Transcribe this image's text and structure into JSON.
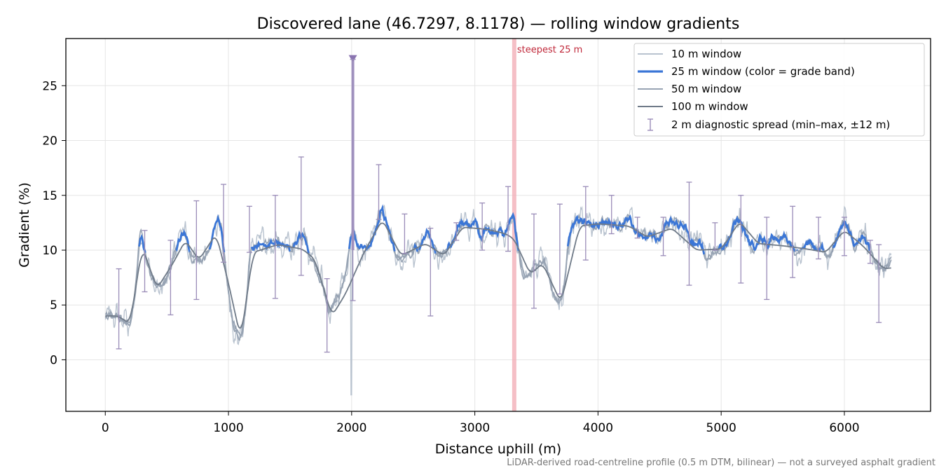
{
  "chart_data": {
    "type": "line",
    "title": "Discovered lane (46.7297, 8.1178) — rolling window gradients",
    "xlabel": "Distance uphill (m)",
    "ylabel": "Gradient (%)",
    "footnote": "LiDAR-derived road-centreline profile (0.5 m DTM, bilinear) — not a surveyed asphalt gradient",
    "xlim": [
      -320,
      6700
    ],
    "ylim": [
      -4.7,
      29.3
    ],
    "xticks": [
      0,
      1000,
      2000,
      3000,
      4000,
      5000,
      6000
    ],
    "yticks": [
      0,
      5,
      10,
      15,
      20,
      25
    ],
    "grid": true,
    "legend_position": "top-right",
    "legend": [
      "10 m window",
      "25 m window (color = grade band)",
      "50 m window",
      "100 m window",
      "2 m diagnostic spread (min–max, ±12 m)"
    ],
    "colors": {
      "w10": "#b9c3cf",
      "w25": "#3b76d6",
      "w50": "#97a3b3",
      "w100": "#6f7a88",
      "spread": "#9a8cb8",
      "spike": "#a596c4",
      "steepest_band": "#f2a9b3",
      "steepest_label": "#c0283a"
    },
    "annotations": {
      "steepest_label": "steepest 25 m",
      "steepest_x": 3320,
      "spike_x": 2010,
      "spike_top": 27.6
    },
    "profile_knots": [
      [
        0,
        3.8
      ],
      [
        60,
        4.2
      ],
      [
        120,
        3.9
      ],
      [
        200,
        3.1
      ],
      [
        250,
        6.5
      ],
      [
        285,
        12.0
      ],
      [
        330,
        9.3
      ],
      [
        400,
        6.9
      ],
      [
        450,
        6.4
      ],
      [
        500,
        7.5
      ],
      [
        560,
        9.6
      ],
      [
        620,
        11.4
      ],
      [
        650,
        11.8
      ],
      [
        690,
        9.4
      ],
      [
        740,
        9.1
      ],
      [
        800,
        9.2
      ],
      [
        860,
        10.4
      ],
      [
        900,
        12.7
      ],
      [
        940,
        12.4
      ],
      [
        980,
        8.0
      ],
      [
        1040,
        3.0
      ],
      [
        1100,
        2.0
      ],
      [
        1130,
        3.2
      ],
      [
        1180,
        10.5
      ],
      [
        1210,
        10.0
      ],
      [
        1260,
        10.8
      ],
      [
        1310,
        10.4
      ],
      [
        1350,
        10.8
      ],
      [
        1400,
        10.5
      ],
      [
        1460,
        10.7
      ],
      [
        1510,
        9.8
      ],
      [
        1570,
        11.1
      ],
      [
        1620,
        11.8
      ],
      [
        1650,
        9.6
      ],
      [
        1700,
        9.0
      ],
      [
        1760,
        7.0
      ],
      [
        1820,
        4.2
      ],
      [
        1870,
        5.5
      ],
      [
        1920,
        6.5
      ],
      [
        1970,
        9.0
      ],
      [
        2010,
        12.5
      ],
      [
        2040,
        10.2
      ],
      [
        2100,
        10.0
      ],
      [
        2150,
        10.4
      ],
      [
        2200,
        12.0
      ],
      [
        2240,
        13.8
      ],
      [
        2280,
        12.6
      ],
      [
        2320,
        11.2
      ],
      [
        2350,
        9.6
      ],
      [
        2400,
        9.4
      ],
      [
        2450,
        9.6
      ],
      [
        2500,
        10.0
      ],
      [
        2550,
        10.1
      ],
      [
        2600,
        11.7
      ],
      [
        2640,
        11.2
      ],
      [
        2680,
        9.6
      ],
      [
        2720,
        9.3
      ],
      [
        2780,
        10.1
      ],
      [
        2830,
        10.8
      ],
      [
        2880,
        12.7
      ],
      [
        2920,
        12.4
      ],
      [
        2960,
        12.1
      ],
      [
        3000,
        12.8
      ],
      [
        3050,
        11.1
      ],
      [
        3100,
        12.1
      ],
      [
        3150,
        11.5
      ],
      [
        3200,
        11.9
      ],
      [
        3250,
        11.5
      ],
      [
        3310,
        13.6
      ],
      [
        3340,
        11.0
      ],
      [
        3380,
        8.5
      ],
      [
        3420,
        7.3
      ],
      [
        3470,
        8.2
      ],
      [
        3530,
        9.0
      ],
      [
        3580,
        8.6
      ],
      [
        3640,
        6.0
      ],
      [
        3690,
        5.2
      ],
      [
        3730,
        7.0
      ],
      [
        3770,
        11.8
      ],
      [
        3820,
        12.6
      ],
      [
        3900,
        12.6
      ],
      [
        3980,
        12.2
      ],
      [
        4050,
        12.6
      ],
      [
        4120,
        12.3
      ],
      [
        4200,
        12.1
      ],
      [
        4250,
        13.4
      ],
      [
        4290,
        12.0
      ],
      [
        4350,
        11.1
      ],
      [
        4420,
        11.5
      ],
      [
        4500,
        11.0
      ],
      [
        4550,
        12.4
      ],
      [
        4600,
        12.7
      ],
      [
        4660,
        12.1
      ],
      [
        4700,
        12.3
      ],
      [
        4760,
        10.6
      ],
      [
        4820,
        10.9
      ],
      [
        4880,
        9.2
      ],
      [
        4940,
        9.8
      ],
      [
        5000,
        10.2
      ],
      [
        5060,
        10.8
      ],
      [
        5120,
        13.1
      ],
      [
        5170,
        12.4
      ],
      [
        5220,
        10.8
      ],
      [
        5270,
        10.2
      ],
      [
        5320,
        11.1
      ],
      [
        5370,
        10.4
      ],
      [
        5420,
        11.3
      ],
      [
        5480,
        10.7
      ],
      [
        5520,
        11.4
      ],
      [
        5580,
        10.2
      ],
      [
        5640,
        9.8
      ],
      [
        5700,
        11.0
      ],
      [
        5760,
        10.0
      ],
      [
        5810,
        10.4
      ],
      [
        5860,
        9.2
      ],
      [
        5900,
        10.0
      ],
      [
        5950,
        11.4
      ],
      [
        6000,
        12.6
      ],
      [
        6040,
        11.8
      ],
      [
        6090,
        10.3
      ],
      [
        6140,
        11.4
      ],
      [
        6190,
        10.6
      ],
      [
        6230,
        9.3
      ],
      [
        6280,
        8.6
      ],
      [
        6320,
        8.3
      ],
      [
        6380,
        8.8
      ]
    ],
    "smooth_100m_knots": [
      [
        0,
        4.0
      ],
      [
        100,
        4.0
      ],
      [
        200,
        3.3
      ],
      [
        300,
        10.3
      ],
      [
        420,
        6.5
      ],
      [
        550,
        8.8
      ],
      [
        650,
        10.9
      ],
      [
        760,
        9.1
      ],
      [
        900,
        11.5
      ],
      [
        1000,
        7.0
      ],
      [
        1100,
        1.9
      ],
      [
        1200,
        9.8
      ],
      [
        1400,
        10.5
      ],
      [
        1600,
        10.1
      ],
      [
        1700,
        9.2
      ],
      [
        1840,
        4.0
      ],
      [
        1950,
        6.0
      ],
      [
        2100,
        9.8
      ],
      [
        2250,
        12.8
      ],
      [
        2400,
        9.5
      ],
      [
        2600,
        10.6
      ],
      [
        2750,
        9.5
      ],
      [
        2900,
        12.1
      ],
      [
        3100,
        11.9
      ],
      [
        3250,
        11.5
      ],
      [
        3320,
        11.0
      ],
      [
        3450,
        7.8
      ],
      [
        3550,
        8.8
      ],
      [
        3700,
        5.2
      ],
      [
        3850,
        12.2
      ],
      [
        4000,
        12.4
      ],
      [
        4250,
        12.2
      ],
      [
        4400,
        11.2
      ],
      [
        4600,
        12.0
      ],
      [
        4800,
        10.0
      ],
      [
        5000,
        10.1
      ],
      [
        5150,
        12.6
      ],
      [
        5300,
        10.6
      ],
      [
        5500,
        10.4
      ],
      [
        5700,
        10.1
      ],
      [
        5850,
        9.8
      ],
      [
        6000,
        11.8
      ],
      [
        6150,
        10.4
      ],
      [
        6320,
        8.3
      ],
      [
        6380,
        8.4
      ]
    ],
    "spread_errorbars": [
      {
        "x": 110,
        "min": 1.0,
        "max": 8.3
      },
      {
        "x": 320,
        "min": 6.2,
        "max": 11.8
      },
      {
        "x": 530,
        "min": 4.1,
        "max": 10.9
      },
      {
        "x": 740,
        "min": 5.5,
        "max": 14.5
      },
      {
        "x": 960,
        "min": 8.9,
        "max": 16.0
      },
      {
        "x": 1170,
        "min": 9.8,
        "max": 14.0
      },
      {
        "x": 1380,
        "min": 5.6,
        "max": 15.0
      },
      {
        "x": 1590,
        "min": 7.7,
        "max": 18.5
      },
      {
        "x": 1800,
        "min": 0.7,
        "max": 7.4
      },
      {
        "x": 2010,
        "min": 5.4,
        "max": 27.4
      },
      {
        "x": 2220,
        "min": 12.8,
        "max": 17.8
      },
      {
        "x": 2430,
        "min": 9.7,
        "max": 13.3
      },
      {
        "x": 2640,
        "min": 4.0,
        "max": 12.0
      },
      {
        "x": 2850,
        "min": 10.9,
        "max": 12.5
      },
      {
        "x": 3060,
        "min": 10.0,
        "max": 14.3
      },
      {
        "x": 3270,
        "min": 9.9,
        "max": 15.8
      },
      {
        "x": 3480,
        "min": 4.7,
        "max": 13.3
      },
      {
        "x": 3690,
        "min": 6.0,
        "max": 14.2
      },
      {
        "x": 3900,
        "min": 9.1,
        "max": 15.8
      },
      {
        "x": 4110,
        "min": 11.5,
        "max": 15.0
      },
      {
        "x": 4320,
        "min": 11.1,
        "max": 13.0
      },
      {
        "x": 4530,
        "min": 9.5,
        "max": 13.0
      },
      {
        "x": 4740,
        "min": 6.8,
        "max": 16.2
      },
      {
        "x": 4950,
        "min": 10.0,
        "max": 12.5
      },
      {
        "x": 5160,
        "min": 7.0,
        "max": 15.0
      },
      {
        "x": 5370,
        "min": 5.5,
        "max": 13.0
      },
      {
        "x": 5580,
        "min": 7.5,
        "max": 14.0
      },
      {
        "x": 5790,
        "min": 9.2,
        "max": 13.0
      },
      {
        "x": 6000,
        "min": 9.5,
        "max": 13.0
      },
      {
        "x": 6210,
        "min": 8.8,
        "max": 10.9
      },
      {
        "x": 6280,
        "min": 3.4,
        "max": 10.5
      }
    ]
  }
}
